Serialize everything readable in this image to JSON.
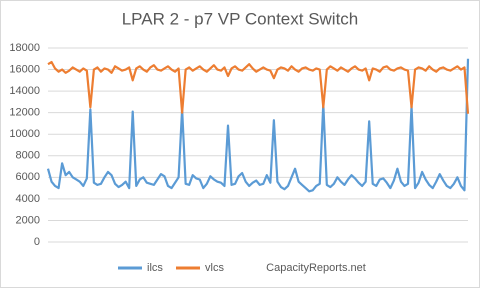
{
  "chart_data": {
    "type": "line",
    "title": "LPAR 2 - p7 VP Context Switch",
    "annotation": "CapacityReports.net",
    "ylim": [
      0,
      18000
    ],
    "yticks": [
      0,
      2000,
      4000,
      6000,
      8000,
      10000,
      12000,
      14000,
      16000,
      18000
    ],
    "grid": true,
    "legend": "bottom",
    "series": [
      {
        "name": "ilcs",
        "color": "#5b9bd5",
        "values": [
          6800,
          5600,
          5200,
          5000,
          7300,
          6200,
          6500,
          6000,
          5800,
          5600,
          5200,
          5900,
          12300,
          5500,
          5300,
          5400,
          6000,
          6500,
          6200,
          5400,
          5100,
          5300,
          5600,
          5000,
          12100,
          5200,
          5800,
          6000,
          5500,
          5400,
          5300,
          5800,
          6300,
          6100,
          5200,
          5000,
          5500,
          6000,
          12300,
          5400,
          5300,
          6200,
          5900,
          5800,
          5000,
          5400,
          6100,
          5800,
          5600,
          5500,
          5200,
          10800,
          5300,
          5400,
          6100,
          6400,
          5600,
          5200,
          5500,
          5700,
          5300,
          5400,
          6200,
          5500,
          11300,
          5600,
          5100,
          4900,
          5200,
          6000,
          6800,
          5600,
          5300,
          5000,
          4700,
          4800,
          5200,
          5400,
          12800,
          5300,
          5100,
          5400,
          6000,
          5600,
          5300,
          5800,
          6200,
          5900,
          5500,
          5200,
          5600,
          11200,
          5400,
          5200,
          5800,
          5900,
          5500,
          5000,
          5700,
          6800,
          5600,
          5200,
          5400,
          12600,
          5000,
          5500,
          6500,
          5800,
          5300,
          5000,
          5600,
          6300,
          5700,
          5200,
          5000,
          5400,
          6000,
          5200,
          4800,
          17000
        ]
      },
      {
        "name": "vlcs",
        "color": "#ed7d31",
        "values": [
          16500,
          16700,
          16100,
          15800,
          16000,
          15700,
          15900,
          16200,
          16000,
          15800,
          16100,
          15900,
          12500,
          16000,
          16200,
          15800,
          16100,
          16000,
          15700,
          16300,
          16100,
          15900,
          16000,
          16200,
          15000,
          16100,
          16300,
          16000,
          15800,
          16200,
          16400,
          16000,
          15900,
          16100,
          16300,
          16000,
          15800,
          16100,
          12000,
          16000,
          16200,
          15900,
          16100,
          16300,
          16000,
          15800,
          16100,
          16400,
          16000,
          15900,
          16200,
          15400,
          16100,
          16300,
          16000,
          15900,
          16200,
          16500,
          16100,
          15800,
          16000,
          16200,
          16000,
          15900,
          15200,
          16000,
          16200,
          16100,
          15900,
          16300,
          16000,
          15800,
          16100,
          16200,
          16000,
          15900,
          16100,
          16000,
          12500,
          16000,
          16300,
          16100,
          15900,
          16200,
          16000,
          15800,
          16100,
          16300,
          16000,
          15900,
          16100,
          15000,
          16100,
          16000,
          15800,
          16200,
          16300,
          16000,
          15900,
          16100,
          16200,
          16000,
          15900,
          12500,
          16000,
          16200,
          16100,
          15900,
          16300,
          16000,
          15800,
          16100,
          16200,
          16000,
          15900,
          16100,
          16300,
          16000,
          16200,
          11900
        ]
      }
    ]
  }
}
